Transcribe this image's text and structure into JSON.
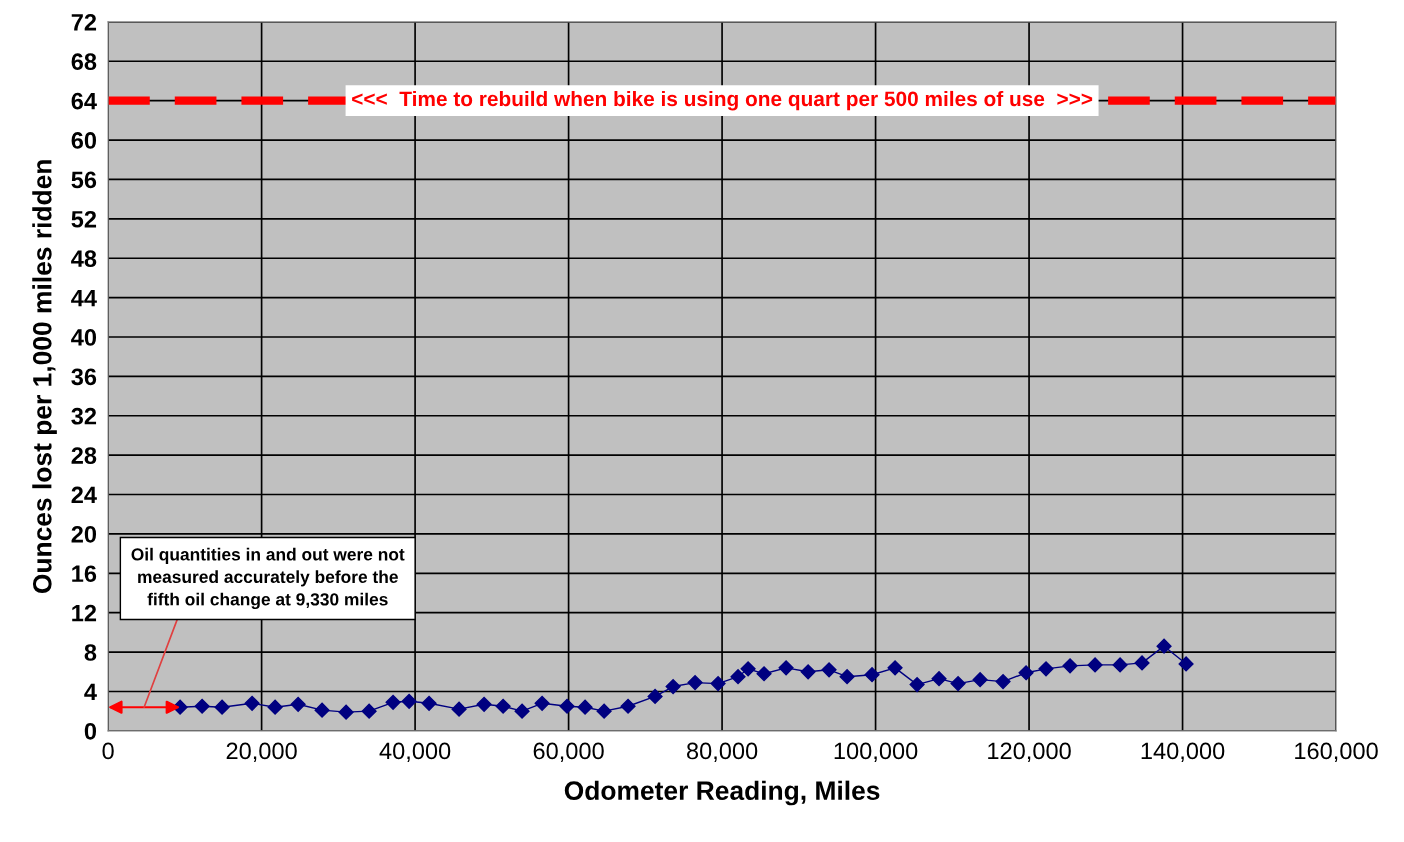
{
  "chart_data": {
    "type": "line",
    "xlabel": "Odometer Reading, Miles",
    "ylabel": "Ounces lost per 1,000 miles ridden",
    "x": [
      9380,
      12250,
      14850,
      18760,
      21760,
      24760,
      27880,
      31010,
      34010,
      37130,
      39220,
      41820,
      45730,
      48990,
      51470,
      53940,
      56550,
      59800,
      62150,
      64630,
      67750,
      71270,
      73620,
      76480,
      79480,
      82080,
      83390,
      85470,
      88340,
      91210,
      93940,
      96290,
      99540,
      102540,
      105410,
      108270,
      110750,
      113620,
      116610,
      119610,
      122210,
      125340,
      128600,
      131860,
      134720,
      137590,
      140460
    ],
    "series": [
      {
        "color": "#000080",
        "values": [
          2.4,
          2.5,
          2.4,
          2.8,
          2.4,
          2.7,
          2.1,
          1.9,
          2.0,
          2.9,
          3.0,
          2.8,
          2.2,
          2.7,
          2.5,
          2.0,
          2.8,
          2.5,
          2.4,
          2.0,
          2.5,
          3.5,
          4.5,
          4.9,
          4.8,
          5.5,
          6.3,
          5.8,
          6.4,
          6.0,
          6.2,
          5.5,
          5.7,
          6.4,
          4.7,
          5.3,
          4.8,
          5.2,
          5.0,
          5.9,
          6.3,
          6.6,
          6.7,
          6.7,
          6.9,
          8.6,
          6.8
        ]
      }
    ],
    "marker": "diamond",
    "line_style": "solid",
    "grid": true,
    "legend": false,
    "xlim": [
      0,
      160000
    ],
    "xticks": [
      0,
      {
        "value": 20000,
        "label": "20,000"
      },
      {
        "value": 40000,
        "label": "40,000"
      },
      {
        "value": 60000,
        "label": "60,000"
      },
      {
        "value": 80000,
        "label": "80,000"
      },
      {
        "value": 100000,
        "label": "100,000"
      },
      {
        "value": 120000,
        "label": "120,000"
      },
      {
        "value": 140000,
        "label": "140,000"
      },
      {
        "value": 160000,
        "label": "160,000"
      }
    ],
    "ylim": [
      0,
      72
    ],
    "yticks": [
      0,
      4,
      8,
      12,
      16,
      20,
      24,
      28,
      32,
      36,
      40,
      44,
      48,
      52,
      56,
      60,
      64,
      68,
      72
    ],
    "ref_lines": [
      {
        "axis": "y",
        "value": 64,
        "label": "<<<  Time to rebuild when bike is using one quart per 500 miles of use  >>>",
        "color": "#ff0000",
        "line_style": "dashed"
      }
    ],
    "annotations": [
      "Oil quantities in and out were not\nmeasured accurately before the\nfifth oil change at 9,330 miles"
    ]
  }
}
